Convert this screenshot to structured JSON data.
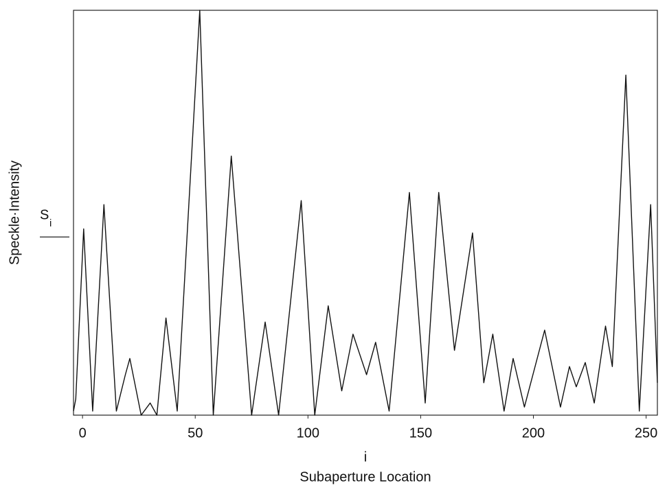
{
  "chart_data": {
    "type": "line",
    "x_symbol": "i",
    "xlabel": "Subaperture Location",
    "ylabel": "Speckle·Intensity",
    "y_marker_label": "S",
    "y_marker_subscript": "i",
    "y_marker_value": 44,
    "xlim": [
      -4,
      255
    ],
    "xticks": [
      0,
      50,
      100,
      150,
      200,
      250
    ],
    "ylim": [
      0,
      100
    ],
    "color": "#111111",
    "x": [
      -4,
      -3,
      0.5,
      4.5,
      9.5,
      15,
      19,
      21,
      26,
      30,
      33,
      37,
      42,
      52,
      58,
      66,
      75,
      81,
      87,
      97,
      103,
      109,
      115,
      120,
      126,
      130,
      136,
      145,
      152,
      158,
      165,
      173,
      178,
      182,
      187,
      191,
      196,
      205,
      212,
      216,
      219,
      223,
      227,
      232,
      235,
      241,
      247,
      252,
      255
    ],
    "values": [
      1,
      4,
      46,
      1,
      52,
      1,
      10,
      14,
      0,
      3,
      0,
      24,
      1,
      100,
      0,
      64,
      0,
      23,
      0,
      53,
      0,
      27,
      6,
      20,
      10,
      18,
      1,
      55,
      3,
      55,
      16,
      45,
      8,
      20,
      1,
      14,
      2,
      21,
      2,
      12,
      7,
      13,
      3,
      22,
      12,
      84,
      1,
      52,
      8
    ]
  }
}
